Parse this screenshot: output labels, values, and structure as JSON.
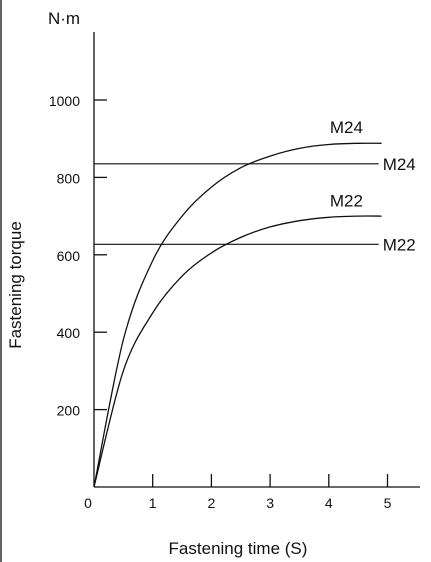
{
  "chart_data": {
    "type": "line",
    "title": "",
    "xlabel": "Fastening time (S)",
    "ylabel": "Fastening torque",
    "y_unit": "N·m",
    "xlim": [
      0,
      5.6
    ],
    "ylim": [
      0,
      1160
    ],
    "x_ticks": [
      0,
      1,
      2,
      3,
      4,
      5
    ],
    "x_tick_labels": [
      "0",
      "1",
      "2",
      "3",
      "4",
      "5"
    ],
    "y_ticks": [
      200,
      400,
      600,
      800,
      1000
    ],
    "y_tick_labels": [
      "200",
      "400",
      "600",
      "800",
      "1000"
    ],
    "grid": false,
    "legend": "none",
    "series": [
      {
        "name": "M24",
        "kind": "curve",
        "x": [
          0,
          0.5,
          1.0,
          1.5,
          2.0,
          2.5,
          3.0,
          3.5,
          4.0,
          4.5,
          4.9
        ],
        "y": [
          0,
          380,
          585,
          700,
          775,
          825,
          855,
          875,
          885,
          888,
          888
        ]
      },
      {
        "name": "M22",
        "kind": "curve",
        "x": [
          0,
          0.5,
          1.0,
          1.5,
          2.0,
          2.5,
          3.0,
          3.5,
          4.0,
          4.5,
          4.9
        ],
        "y": [
          0,
          300,
          450,
          545,
          605,
          645,
          672,
          688,
          697,
          700,
          700
        ]
      },
      {
        "name": "M24",
        "kind": "reference",
        "x": [
          0,
          4.85
        ],
        "y": [
          835,
          835
        ]
      },
      {
        "name": "M22",
        "kind": "reference",
        "x": [
          0,
          4.85
        ],
        "y": [
          627,
          627
        ]
      }
    ],
    "curve_labels": [
      {
        "text": "M24",
        "x": 4.3,
        "y": 930
      },
      {
        "text": "M22",
        "x": 4.3,
        "y": 740
      }
    ],
    "reference_labels": [
      {
        "text": "M24",
        "x": 5.2,
        "y": 835
      },
      {
        "text": "M22",
        "x": 5.2,
        "y": 627
      }
    ]
  }
}
